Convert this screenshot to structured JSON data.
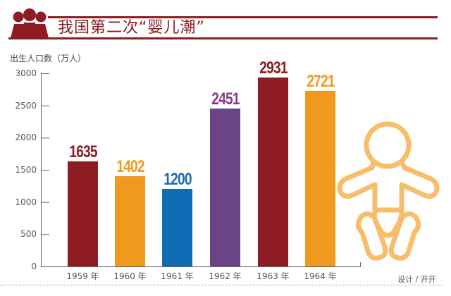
{
  "header": {
    "title": "我国第二次“婴儿潮”",
    "icon": "people-group-icon",
    "accent_color": "#8e1c22"
  },
  "chart_data": {
    "type": "bar",
    "title": "我国第二次“婴儿潮”",
    "xlabel": "",
    "ylabel": "出生人口数（万人）",
    "ylim": [
      0,
      3000
    ],
    "yticks": [
      "0",
      "500",
      "1000",
      "1500",
      "2000",
      "2500",
      "3000"
    ],
    "categories": [
      "1959 年",
      "1960 年",
      "1961 年",
      "1962 年",
      "1963 年",
      "1964 年"
    ],
    "values": [
      1635,
      1402,
      1200,
      2451,
      2931,
      2721
    ],
    "value_labels": [
      "1635",
      "1402",
      "1200",
      "2451",
      "2931",
      "2721"
    ],
    "colors": [
      "#8e1c22",
      "#f0991f",
      "#0f6db5",
      "#6b4487",
      "#8e1c22",
      "#f0991f"
    ],
    "label_colors": [
      "#8e1c22",
      "#f0991f",
      "#1a6bb0",
      "#8a3a8e",
      "#8e1c22",
      "#f0991f"
    ],
    "grid": false,
    "legend": null
  },
  "decoration": {
    "baby_icon": "baby-icon",
    "baby_color": "#f7bd6a"
  },
  "footer": {
    "credit": "设计 / 开开"
  }
}
